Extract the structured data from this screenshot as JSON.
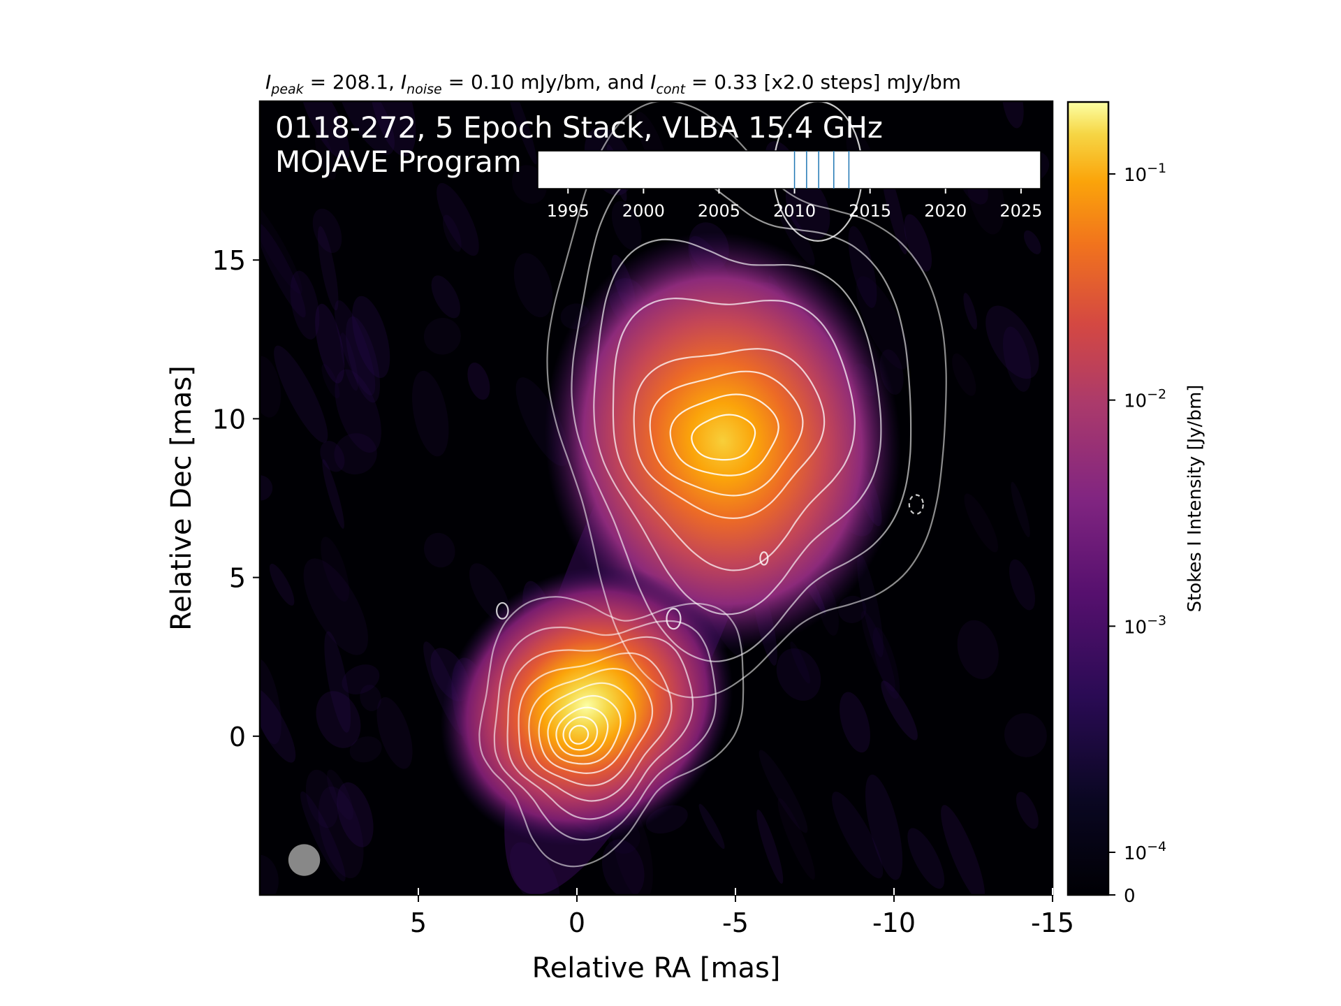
{
  "chart_data": {
    "type": "heatmap",
    "title": "0118-272, 5 Epoch Stack, VLBA 15.4 GHz",
    "subtitle_parts": {
      "peak_sym": "I",
      "peak_sub": "peak",
      "peak_val": " = 208.1, ",
      "noise_sym": "I",
      "noise_sub": "noise",
      "noise_val": " = 0.10 mJy/bm, and ",
      "cont_sym": "I",
      "cont_sub": "cont",
      "cont_val": " = 0.33 [x2.0 steps] mJy/bm"
    },
    "program": "MOJAVE Program",
    "xlabel": "Relative RA [mas]",
    "ylabel": "Relative Dec [mas]",
    "xlim": [
      10.0,
      -15.0
    ],
    "ylim": [
      -5.0,
      20.0
    ],
    "x_ticks": [
      5,
      0,
      -5,
      -10,
      -15
    ],
    "x_tick_labels": [
      "5",
      "0",
      "-5",
      "-10",
      "-15"
    ],
    "y_ticks": [
      0,
      5,
      10,
      15
    ],
    "y_tick_labels": [
      "0",
      "5",
      "10",
      "15"
    ],
    "colorbar": {
      "label": "Stokes I Intensity [Jy/bm]",
      "scale": "log",
      "cmap": "inferno",
      "range": [
        0,
        0.2081
      ],
      "ticks": [
        {
          "value": 0.1,
          "base": "10",
          "exp": "−1"
        },
        {
          "value": 0.01,
          "base": "10",
          "exp": "−2"
        },
        {
          "value": 0.001,
          "base": "10",
          "exp": "−3"
        },
        {
          "value": 0.0001,
          "base": "10",
          "exp": "−4"
        },
        {
          "value": 0,
          "base": "0",
          "exp": ""
        }
      ]
    },
    "components": [
      {
        "ra": 0.0,
        "dec": 0.0,
        "peak_jy": 0.2081
      },
      {
        "ra": -4.6,
        "dec": 9.3,
        "peak_jy": 0.04
      }
    ],
    "beam": {
      "ra": 8.6,
      "dec": -3.9,
      "major_mas": 1.0,
      "minor_mas": 1.0
    },
    "timeline": {
      "xlim": [
        1993.0,
        2026.3
      ],
      "ticks": [
        1995,
        2000,
        2005,
        2010,
        2015,
        2020,
        2025
      ],
      "tick_labels": [
        "1995",
        "2000",
        "2005",
        "2010",
        "2015",
        "2020",
        "2025"
      ],
      "epochs": [
        2010.0,
        2010.8,
        2011.6,
        2012.6,
        2013.6
      ],
      "epoch_color": "#1f77b4"
    },
    "contour_color": "#ffffff"
  }
}
